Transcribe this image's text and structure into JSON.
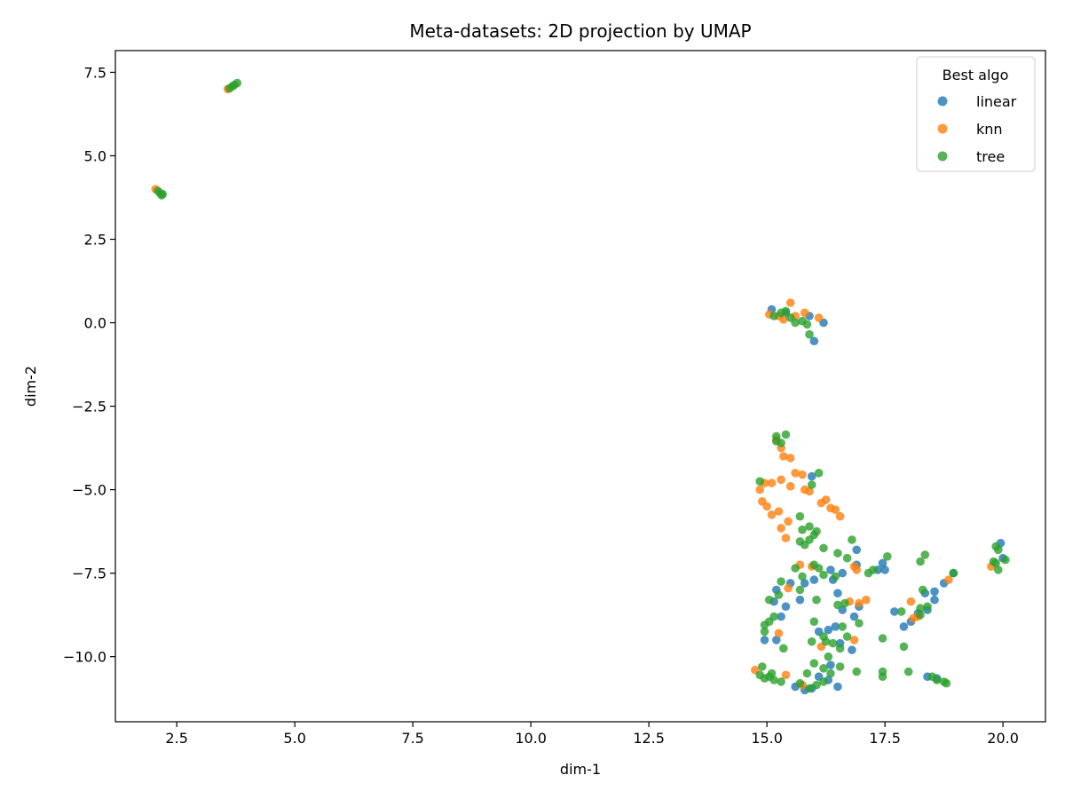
{
  "chart_data": {
    "type": "scatter",
    "title": "Meta-datasets: 2D projection by UMAP",
    "xlabel": "dim-1",
    "ylabel": "dim-2",
    "xlim": [
      1.2,
      20.9
    ],
    "ylim": [
      -11.95,
      8.15
    ],
    "xticks": [
      2.5,
      5.0,
      7.5,
      10.0,
      12.5,
      15.0,
      17.5,
      20.0
    ],
    "yticks": [
      -10.0,
      -7.5,
      -5.0,
      -2.5,
      0.0,
      2.5,
      5.0,
      7.5
    ],
    "xtick_labels": [
      "2.5",
      "5.0",
      "7.5",
      "10.0",
      "12.5",
      "15.0",
      "17.5",
      "20.0"
    ],
    "ytick_labels": [
      "−10.0",
      "−7.5",
      "−5.0",
      "−2.5",
      "0.0",
      "2.5",
      "5.0",
      "7.5"
    ],
    "grid": false,
    "legend": {
      "title": "Best algo",
      "placement": "top-right"
    },
    "series": [
      {
        "name": "linear",
        "color": "#1f77b4",
        "points": [
          [
            15.1,
            0.4
          ],
          [
            15.4,
            0.3
          ],
          [
            15.9,
            0.2
          ],
          [
            16.0,
            -0.55
          ],
          [
            16.2,
            0.0
          ],
          [
            15.95,
            -4.6
          ],
          [
            15.2,
            -8.0
          ],
          [
            15.3,
            -8.8
          ],
          [
            15.4,
            -8.5
          ],
          [
            15.5,
            -7.8
          ],
          [
            15.15,
            -8.35
          ],
          [
            15.8,
            -7.8
          ],
          [
            15.7,
            -8.3
          ],
          [
            16.0,
            -7.7
          ],
          [
            16.35,
            -7.4
          ],
          [
            16.4,
            -7.7
          ],
          [
            16.6,
            -7.5
          ],
          [
            16.5,
            -8.1
          ],
          [
            16.6,
            -8.6
          ],
          [
            16.85,
            -8.8
          ],
          [
            16.9,
            -7.25
          ],
          [
            16.9,
            -6.8
          ],
          [
            16.95,
            -8.5
          ],
          [
            17.35,
            -7.4
          ],
          [
            17.45,
            -7.2
          ],
          [
            17.5,
            -7.4
          ],
          [
            16.1,
            -9.25
          ],
          [
            16.3,
            -9.2
          ],
          [
            16.45,
            -9.1
          ],
          [
            16.55,
            -9.6
          ],
          [
            16.8,
            -9.8
          ],
          [
            16.35,
            -10.25
          ],
          [
            16.1,
            -10.6
          ],
          [
            15.95,
            -10.95
          ],
          [
            15.8,
            -11.0
          ],
          [
            15.6,
            -10.9
          ],
          [
            16.5,
            -10.9
          ],
          [
            16.3,
            -10.7
          ],
          [
            14.95,
            -9.5
          ],
          [
            15.2,
            -9.5
          ],
          [
            17.7,
            -8.65
          ],
          [
            17.9,
            -9.1
          ],
          [
            18.05,
            -8.95
          ],
          [
            18.2,
            -8.7
          ],
          [
            18.4,
            -8.6
          ],
          [
            18.55,
            -8.3
          ],
          [
            18.55,
            -8.05
          ],
          [
            18.35,
            -8.1
          ],
          [
            18.75,
            -7.8
          ],
          [
            18.95,
            -7.5
          ],
          [
            19.95,
            -6.6
          ],
          [
            20.0,
            -7.05
          ],
          [
            18.4,
            -10.6
          ],
          [
            18.6,
            -10.65
          ]
        ]
      },
      {
        "name": "knn",
        "color": "#ff7f0e",
        "points": [
          [
            2.05,
            4.0
          ],
          [
            3.58,
            7.0
          ],
          [
            15.05,
            0.25
          ],
          [
            15.25,
            0.2
          ],
          [
            15.5,
            0.6
          ],
          [
            15.6,
            0.2
          ],
          [
            15.8,
            0.3
          ],
          [
            16.1,
            0.15
          ],
          [
            15.35,
            0.1
          ],
          [
            15.2,
            -3.5
          ],
          [
            15.3,
            -3.75
          ],
          [
            15.35,
            -4.0
          ],
          [
            15.5,
            -4.05
          ],
          [
            15.5,
            -4.9
          ],
          [
            15.6,
            -4.5
          ],
          [
            15.75,
            -4.55
          ],
          [
            15.8,
            -5.0
          ],
          [
            15.9,
            -5.05
          ],
          [
            15.3,
            -4.7
          ],
          [
            15.1,
            -4.8
          ],
          [
            14.95,
            -4.8
          ],
          [
            14.85,
            -5.0
          ],
          [
            14.9,
            -5.35
          ],
          [
            15.0,
            -5.5
          ],
          [
            15.1,
            -5.75
          ],
          [
            15.25,
            -5.65
          ],
          [
            15.3,
            -6.15
          ],
          [
            15.45,
            -5.95
          ],
          [
            15.4,
            -6.45
          ],
          [
            16.15,
            -5.4
          ],
          [
            16.25,
            -5.3
          ],
          [
            16.35,
            -5.55
          ],
          [
            16.45,
            -5.6
          ],
          [
            16.55,
            -5.8
          ],
          [
            15.7,
            -7.25
          ],
          [
            15.95,
            -7.3
          ],
          [
            16.85,
            -7.3
          ],
          [
            16.9,
            -7.4
          ],
          [
            16.95,
            -8.4
          ],
          [
            16.75,
            -8.35
          ],
          [
            17.1,
            -8.3
          ],
          [
            15.45,
            -7.95
          ],
          [
            15.25,
            -9.3
          ],
          [
            16.15,
            -9.7
          ],
          [
            16.85,
            -9.5
          ],
          [
            18.05,
            -8.35
          ],
          [
            18.1,
            -8.85
          ],
          [
            18.2,
            -8.8
          ],
          [
            18.85,
            -7.7
          ],
          [
            19.75,
            -7.3
          ],
          [
            14.75,
            -10.4
          ],
          [
            15.4,
            -10.55
          ],
          [
            15.75,
            -10.85
          ]
        ]
      },
      {
        "name": "tree",
        "color": "#2ca02c",
        "points": [
          [
            2.1,
            3.95
          ],
          [
            2.15,
            3.88
          ],
          [
            2.2,
            3.85
          ],
          [
            2.18,
            3.82
          ],
          [
            3.62,
            7.02
          ],
          [
            3.68,
            7.08
          ],
          [
            3.72,
            7.12
          ],
          [
            3.78,
            7.18
          ],
          [
            15.15,
            0.2
          ],
          [
            15.3,
            0.3
          ],
          [
            15.4,
            0.35
          ],
          [
            15.6,
            0.0
          ],
          [
            15.75,
            0.05
          ],
          [
            15.85,
            -0.05
          ],
          [
            15.9,
            -0.35
          ],
          [
            15.5,
            0.15
          ],
          [
            15.2,
            -3.4
          ],
          [
            15.3,
            -3.6
          ],
          [
            15.4,
            -3.35
          ],
          [
            15.2,
            -3.55
          ],
          [
            16.1,
            -4.5
          ],
          [
            15.95,
            -4.85
          ],
          [
            14.85,
            -4.75
          ],
          [
            15.7,
            -5.8
          ],
          [
            15.75,
            -6.2
          ],
          [
            15.9,
            -6.1
          ],
          [
            15.9,
            -6.5
          ],
          [
            16.0,
            -6.35
          ],
          [
            16.05,
            -6.25
          ],
          [
            15.7,
            -6.55
          ],
          [
            15.8,
            -6.65
          ],
          [
            16.2,
            -6.75
          ],
          [
            16.5,
            -6.9
          ],
          [
            16.7,
            -7.05
          ],
          [
            16.8,
            -6.5
          ],
          [
            17.25,
            -7.4
          ],
          [
            17.55,
            -7.0
          ],
          [
            15.6,
            -7.35
          ],
          [
            15.75,
            -7.6
          ],
          [
            16.0,
            -7.25
          ],
          [
            16.1,
            -7.35
          ],
          [
            16.2,
            -7.55
          ],
          [
            17.15,
            -7.5
          ],
          [
            15.3,
            -7.75
          ],
          [
            15.25,
            -8.15
          ],
          [
            15.05,
            -8.3
          ],
          [
            15.7,
            -8.0
          ],
          [
            16.05,
            -8.3
          ],
          [
            16.5,
            -8.45
          ],
          [
            16.65,
            -8.4
          ],
          [
            17.85,
            -8.65
          ],
          [
            16.0,
            -8.95
          ],
          [
            15.15,
            -8.8
          ],
          [
            15.05,
            -8.95
          ],
          [
            14.95,
            -9.05
          ],
          [
            14.95,
            -9.25
          ],
          [
            15.35,
            -9.75
          ],
          [
            15.95,
            -9.55
          ],
          [
            16.2,
            -9.4
          ],
          [
            16.25,
            -9.55
          ],
          [
            16.6,
            -9.1
          ],
          [
            16.7,
            -9.4
          ],
          [
            16.95,
            -9.0
          ],
          [
            17.45,
            -9.45
          ],
          [
            17.9,
            -9.7
          ],
          [
            16.3,
            -10.0
          ],
          [
            16.0,
            -10.2
          ],
          [
            16.2,
            -10.35
          ],
          [
            16.55,
            -10.3
          ],
          [
            16.9,
            -10.45
          ],
          [
            17.45,
            -10.45
          ],
          [
            17.45,
            -10.6
          ],
          [
            18.0,
            -10.45
          ],
          [
            14.9,
            -10.3
          ],
          [
            14.85,
            -10.55
          ],
          [
            14.95,
            -10.65
          ],
          [
            15.05,
            -10.6
          ],
          [
            15.1,
            -10.5
          ],
          [
            15.15,
            -10.7
          ],
          [
            15.3,
            -10.75
          ],
          [
            15.7,
            -10.8
          ],
          [
            15.9,
            -10.95
          ],
          [
            16.05,
            -10.85
          ],
          [
            16.2,
            -10.75
          ],
          [
            16.35,
            -10.5
          ],
          [
            18.5,
            -10.6
          ],
          [
            18.75,
            -10.75
          ],
          [
            18.8,
            -10.8
          ],
          [
            18.6,
            -10.7
          ],
          [
            18.25,
            -8.55
          ],
          [
            18.25,
            -7.15
          ],
          [
            18.35,
            -6.95
          ],
          [
            18.3,
            -8.0
          ],
          [
            19.85,
            -6.7
          ],
          [
            19.9,
            -6.8
          ],
          [
            19.8,
            -7.15
          ],
          [
            19.9,
            -7.4
          ],
          [
            20.05,
            -7.1
          ],
          [
            19.85,
            -7.2
          ],
          [
            18.95,
            -7.5
          ],
          [
            18.4,
            -8.5
          ],
          [
            18.25,
            -8.75
          ],
          [
            16.45,
            -7.6
          ],
          [
            16.4,
            -9.6
          ],
          [
            16.55,
            -9.75
          ],
          [
            15.85,
            -10.5
          ]
        ]
      }
    ]
  }
}
